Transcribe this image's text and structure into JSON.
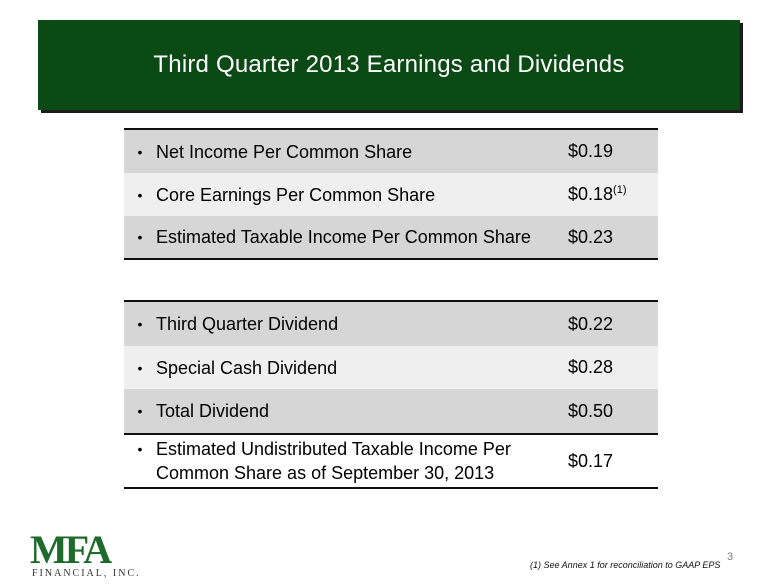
{
  "title": "Third Quarter 2013 Earnings and Dividends",
  "earnings": [
    {
      "bullet": "•",
      "label": "Net Income Per Common Share",
      "value": "$0.19",
      "sup": ""
    },
    {
      "bullet": "•",
      "label": "Core Earnings Per Common Share",
      "value": "$0.18",
      "sup": "(1)"
    },
    {
      "bullet": "•",
      "label": "Estimated Taxable Income Per Common Share",
      "value": "$0.23",
      "sup": ""
    }
  ],
  "dividends": [
    {
      "bullet": "•",
      "label": "Third Quarter Dividend",
      "value": "$0.22"
    },
    {
      "bullet": "•",
      "label": "Special Cash Dividend",
      "value": "$0.28"
    },
    {
      "bullet": "•",
      "label": "Total Dividend",
      "value": "$0.50"
    },
    {
      "bullet": "•",
      "label_line1": "Estimated Undistributed Taxable Income Per",
      "label_line2": "Common Share as of September 30, 2013",
      "value": "$0.17"
    }
  ],
  "logo": {
    "main": "MFA",
    "sub": "FINANCIAL, INC."
  },
  "footnote": "(1) See Annex 1 for reconciliation to GAAP EPS",
  "page_number": "3",
  "colors": {
    "banner": "#0b4a14",
    "logo": "#1f6b2c"
  }
}
